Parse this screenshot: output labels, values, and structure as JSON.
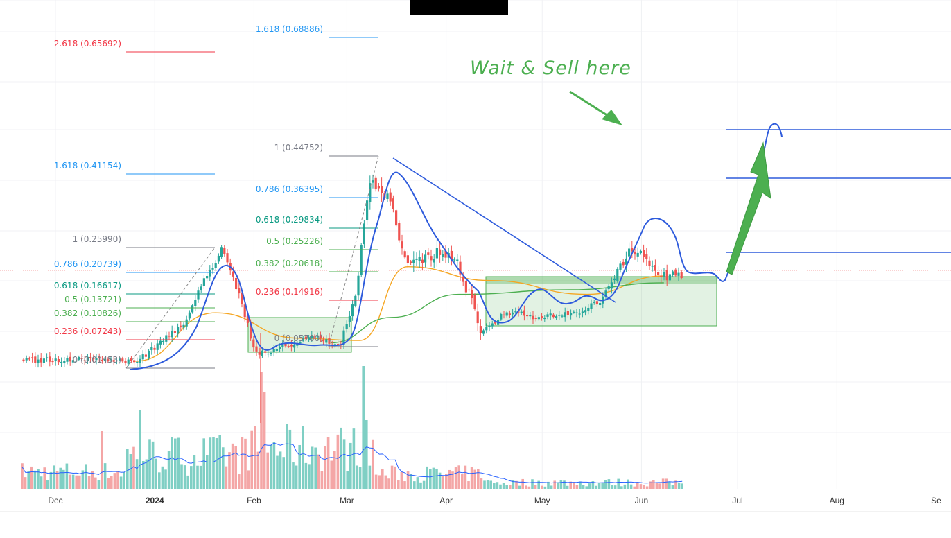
{
  "chart_data": {
    "type": "candlestick",
    "timeframe_axis": {
      "ticks": [
        {
          "label": "Dec",
          "date": "2023-12-01"
        },
        {
          "label": "2024",
          "date": "2024-01-01",
          "bold": true
        },
        {
          "label": "Feb",
          "date": "2024-02-01"
        },
        {
          "label": "Mar",
          "date": "2024-03-01"
        },
        {
          "label": "Apr",
          "date": "2024-04-01"
        },
        {
          "label": "May",
          "date": "2024-05-01"
        },
        {
          "label": "Jun",
          "date": "2024-06-01"
        },
        {
          "label": "Jul",
          "date": "2024-07-01"
        },
        {
          "label": "Aug",
          "date": "2024-08-01"
        },
        {
          "label": "Se",
          "date": "2024-09-01"
        }
      ]
    },
    "price_series": {
      "name": "",
      "points": [
        {
          "date": "2023-11-25",
          "price": 0.016
        },
        {
          "date": "2023-12-10",
          "price": 0.021
        },
        {
          "date": "2023-12-26",
          "price": 0.012
        },
        {
          "date": "2024-01-10",
          "price": 0.095
        },
        {
          "date": "2024-01-17",
          "price": 0.198
        },
        {
          "date": "2024-01-22",
          "price": 0.258
        },
        {
          "date": "2024-01-28",
          "price": 0.145
        },
        {
          "date": "2024-02-01",
          "price": 0.04
        },
        {
          "date": "2024-02-05",
          "price": 0.03
        },
        {
          "date": "2024-02-12",
          "price": 0.05
        },
        {
          "date": "2024-02-20",
          "price": 0.07
        },
        {
          "date": "2024-02-28",
          "price": 0.05
        },
        {
          "date": "2024-03-04",
          "price": 0.17
        },
        {
          "date": "2024-03-08",
          "price": 0.4
        },
        {
          "date": "2024-03-14",
          "price": 0.375
        },
        {
          "date": "2024-03-20",
          "price": 0.22
        },
        {
          "date": "2024-03-30",
          "price": 0.25
        },
        {
          "date": "2024-04-05",
          "price": 0.22
        },
        {
          "date": "2024-04-12",
          "price": 0.08
        },
        {
          "date": "2024-04-20",
          "price": 0.12
        },
        {
          "date": "2024-05-01",
          "price": 0.11
        },
        {
          "date": "2024-05-12",
          "price": 0.12
        },
        {
          "date": "2024-05-20",
          "price": 0.15
        },
        {
          "date": "2024-05-28",
          "price": 0.255
        },
        {
          "date": "2024-06-02",
          "price": 0.24
        },
        {
          "date": "2024-06-08",
          "price": 0.2
        }
      ]
    },
    "moving_averages": [
      {
        "name": "",
        "color": "#f5a623",
        "points": [
          {
            "date": "2023-12-26",
            "price": 0.015
          },
          {
            "date": "2024-01-20",
            "price": 0.12
          },
          {
            "date": "2024-02-15",
            "price": 0.065
          },
          {
            "date": "2024-03-05",
            "price": 0.06
          },
          {
            "date": "2024-03-20",
            "price": 0.22
          },
          {
            "date": "2024-04-15",
            "price": 0.19
          },
          {
            "date": "2024-05-15",
            "price": 0.16
          },
          {
            "date": "2024-06-08",
            "price": 0.2
          }
        ]
      },
      {
        "name": "",
        "color": "#4caf50",
        "points": [
          {
            "date": "2024-02-25",
            "price": 0.055
          },
          {
            "date": "2024-03-15",
            "price": 0.11
          },
          {
            "date": "2024-04-05",
            "price": 0.16
          },
          {
            "date": "2024-05-10",
            "price": 0.17
          },
          {
            "date": "2024-06-08",
            "price": 0.185
          }
        ]
      }
    ],
    "fib_levels_group1": [
      {
        "label": "2.618 (0.65692)",
        "value": 0.65692,
        "color": "#f23645"
      },
      {
        "label": "1.618 (0.41154)",
        "value": 0.41154,
        "color": "#2196f3"
      },
      {
        "label": "1 (0.25990)",
        "value": 0.2599,
        "color": "#787b86"
      },
      {
        "label": "0.786 (0.20739)",
        "value": 0.20739,
        "color": "#2196f3"
      },
      {
        "label": "0.618 (0.16617)",
        "value": 0.16617,
        "color": "#089981"
      },
      {
        "label": "0.5 (0.13721)",
        "value": 0.13721,
        "color": "#4caf50"
      },
      {
        "label": "0.382 (0.10826)",
        "value": 0.10826,
        "color": "#4caf50"
      },
      {
        "label": "0.236 (0.07243)",
        "value": 0.07243,
        "color": "#f23645"
      },
      {
        "label": "0 (0.01453)",
        "value": 0.01453,
        "color": "#787b86"
      }
    ],
    "fib_levels_group2": [
      {
        "label": "1.618 (0.68886)",
        "value": 0.68886,
        "color": "#2196f3"
      },
      {
        "label": "1 (0.44752)",
        "value": 0.44752,
        "color": "#787b86"
      },
      {
        "label": "0.786 (0.36395)",
        "value": 0.36395,
        "color": "#2196f3"
      },
      {
        "label": "0.618 (0.29834)",
        "value": 0.29834,
        "color": "#089981"
      },
      {
        "label": "0.5 (0.25226)",
        "value": 0.25226,
        "color": "#4caf50"
      },
      {
        "label": "0.382 (0.20618)",
        "value": 0.20618,
        "color": "#4caf50"
      },
      {
        "label": "0.236 (0.14916)",
        "value": 0.14916,
        "color": "#f23645"
      },
      {
        "label": "0 (0.05700)",
        "value": 0.057,
        "color": "#787b86"
      }
    ],
    "annotations": [
      {
        "text": "Wait & Sell here",
        "color": "#4caf50"
      }
    ],
    "volume": {
      "up_color": "#7fcfc4",
      "down_color": "#f4a6a6",
      "ma_color": "#2962ff"
    },
    "grid": true
  }
}
